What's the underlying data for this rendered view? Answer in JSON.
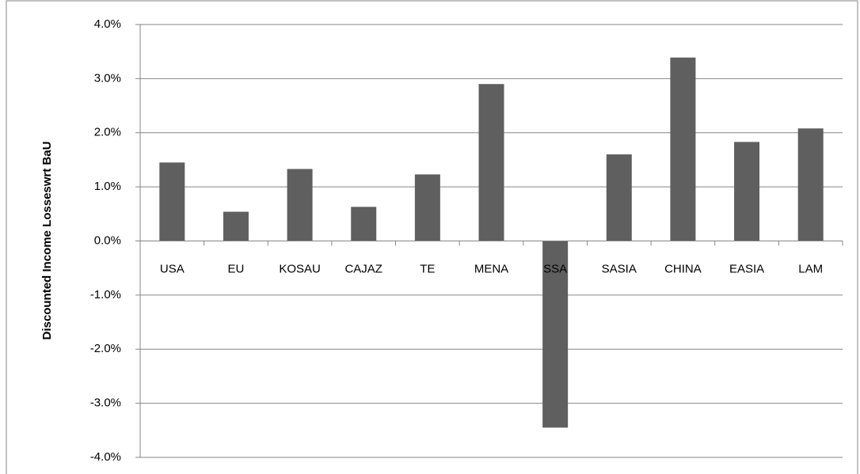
{
  "chart_data": {
    "type": "bar",
    "y_label": "Discounted Income Losseswrt BaU",
    "categories": [
      "USA",
      "EU",
      "KOSAU",
      "CAJAZ",
      "TE",
      "MENA",
      "SSA",
      "SASIA",
      "CHINA",
      "EASIA",
      "LAM"
    ],
    "values": [
      1.45,
      0.54,
      1.33,
      0.63,
      1.23,
      2.9,
      -3.45,
      1.6,
      3.39,
      1.83,
      2.08
    ],
    "color": "#5f5f5f",
    "ylim": [
      -4,
      4
    ],
    "yticks": [
      {
        "value": -4,
        "label": "-4.0%"
      },
      {
        "value": -3,
        "label": "-3.0%"
      },
      {
        "value": -2,
        "label": "-2.0%"
      },
      {
        "value": -1,
        "label": "-1.0%"
      },
      {
        "value": 0,
        "label": "0.0%"
      },
      {
        "value": 1,
        "label": "1.0%"
      },
      {
        "value": 2,
        "label": "2.0%"
      },
      {
        "value": 3,
        "label": "3.0%"
      },
      {
        "value": 4,
        "label": "4.0%"
      }
    ],
    "grid": true
  }
}
